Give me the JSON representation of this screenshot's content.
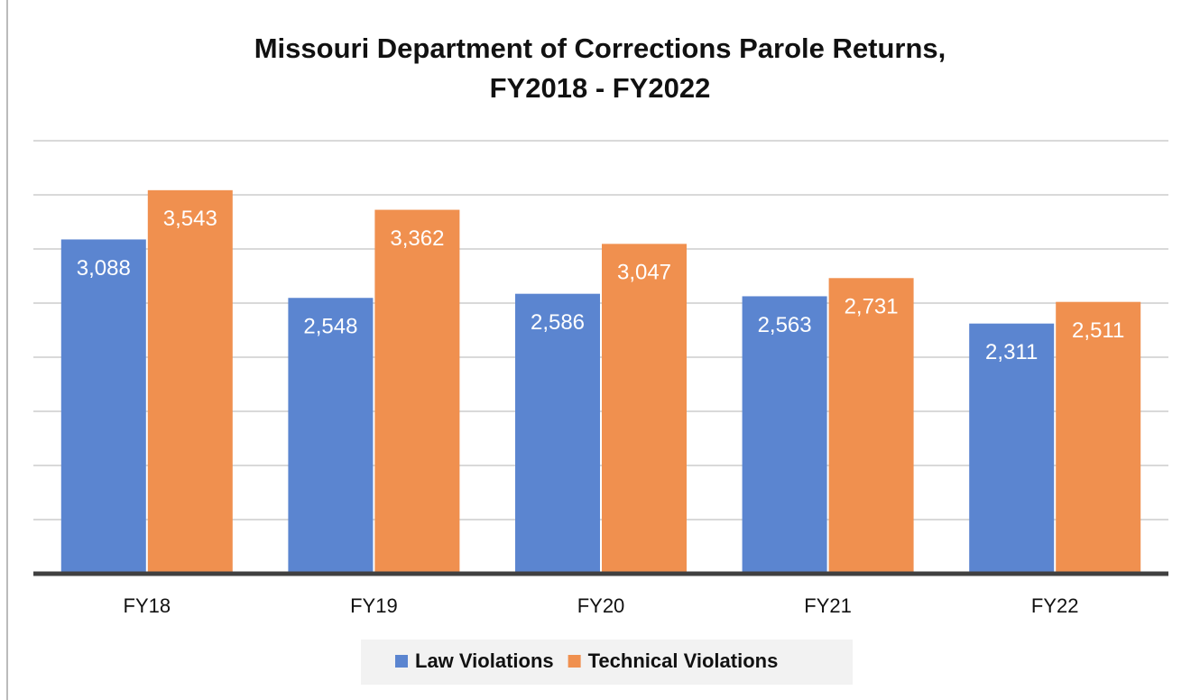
{
  "chart_data": {
    "type": "bar",
    "title": "Missouri Department of Corrections Parole Returns, FY2018 - FY2022",
    "categories": [
      "FY18",
      "FY19",
      "FY20",
      "FY21",
      "FY22"
    ],
    "series": [
      {
        "name": "Law Violations",
        "color": "#5b85d0",
        "values": [
          3088,
          2548,
          2586,
          2563,
          2311
        ],
        "value_labels": [
          "3,088",
          "2,548",
          "2,586",
          "2,563",
          "2,311"
        ]
      },
      {
        "name": "Technical Violations",
        "color": "#f0904f",
        "values": [
          3543,
          3362,
          3047,
          2731,
          2511
        ],
        "value_labels": [
          "3,543",
          "3,362",
          "3,047",
          "2,731",
          "2,511"
        ]
      }
    ],
    "ylim": [
      0,
      4000
    ],
    "yticks": [
      0,
      500,
      1000,
      1500,
      2000,
      2500,
      3000,
      3500,
      4000
    ],
    "grid": true,
    "legend": "bottom"
  }
}
